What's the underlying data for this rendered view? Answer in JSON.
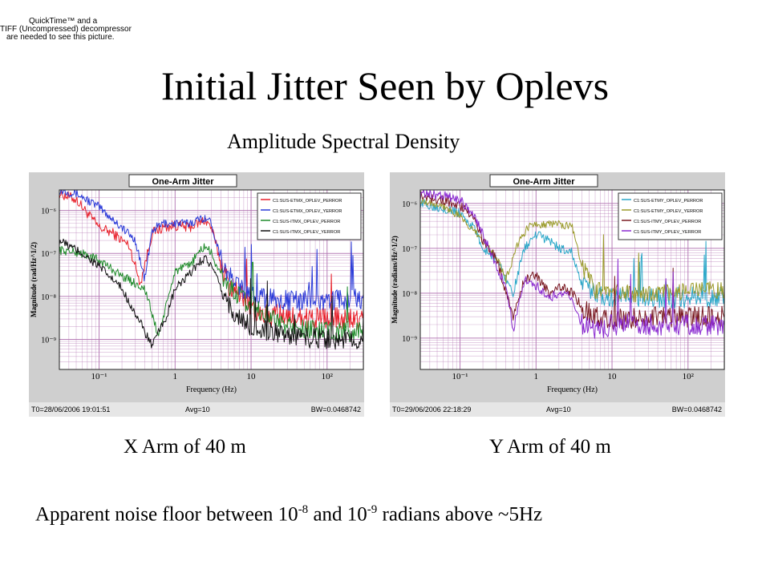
{
  "placeholder_notice": {
    "line1": "QuickTime™ and a",
    "line2": "TIFF (Uncompressed) decompressor",
    "line3": "are needed to see this picture."
  },
  "title": "Initial Jitter Seen by Oplevs",
  "subtitle": "Amplitude Spectral Density",
  "captions": {
    "x_arm": "X Arm of 40 m",
    "y_arm": "Y Arm of 40 m"
  },
  "note": {
    "prefix": "Apparent noise floor between 10",
    "exp1": "-8",
    "mid": " and 10",
    "exp2": "-9",
    "suffix": " radians above ~5Hz"
  },
  "colors": {
    "red": "#e8202a",
    "blue": "#2a3ad8",
    "green": "#1f8a2a",
    "black": "#111111",
    "cyan": "#2aa7c8",
    "olive": "#9a9a2a",
    "maroon": "#7a1a22",
    "purple": "#8a2ad0",
    "grid": "#b070b0",
    "panel_bg": "#cfcfcf"
  },
  "chart_data": [
    {
      "type": "line",
      "title": "One-Arm Jitter",
      "xlabel": "Frequency (Hz)",
      "ylabel": "Magnitude (rad/Hz^1/2)",
      "x_scale": "log",
      "y_scale": "log",
      "xlim": [
        0.03,
        300
      ],
      "ylim": [
        2e-10,
        3e-06
      ],
      "x_ticks": [
        {
          "v": 0.1,
          "label": "10⁻¹"
        },
        {
          "v": 1,
          "label": "1"
        },
        {
          "v": 10,
          "label": "10"
        },
        {
          "v": 100,
          "label": "10²"
        }
      ],
      "y_ticks": [
        {
          "v": 1e-06,
          "label": "10⁻⁶"
        },
        {
          "v": 1e-07,
          "label": "10⁻⁷"
        },
        {
          "v": 1e-08,
          "label": "10⁻⁸"
        },
        {
          "v": 1e-09,
          "label": "10⁻⁹"
        }
      ],
      "grid": true,
      "legend_position": "top-right",
      "footer": {
        "t0": "T0=28/06/2006 19:01:51",
        "avg": "Avg=10",
        "bw": "BW=0.0468742"
      },
      "series": [
        {
          "name": "C1:SUS-ETMX_OPLEV_PERROR",
          "color": "#e8202a",
          "noise": 0.35,
          "points": [
            [
              0.03,
              2.5e-06
            ],
            [
              0.05,
              1.8e-06
            ],
            [
              0.1,
              4e-07
            ],
            [
              0.15,
              3e-07
            ],
            [
              0.25,
              1.5e-07
            ],
            [
              0.35,
              2e-08
            ],
            [
              0.5,
              3e-07
            ],
            [
              0.7,
              4e-07
            ],
            [
              1,
              4.5e-07
            ],
            [
              1.5,
              4e-07
            ],
            [
              2,
              5e-07
            ],
            [
              2.5,
              6e-07
            ],
            [
              3,
              4e-07
            ],
            [
              4,
              6e-08
            ],
            [
              5,
              2e-08
            ],
            [
              8,
              1e-08
            ],
            [
              10,
              5e-09
            ],
            [
              20,
              3.5e-09
            ],
            [
              50,
              3e-09
            ],
            [
              100,
              3e-09
            ],
            [
              300,
              3e-09
            ]
          ]
        },
        {
          "name": "C1:SUS-ETMX_OPLEV_YERROR",
          "color": "#2a3ad8",
          "noise": 0.3,
          "points": [
            [
              0.03,
              3e-06
            ],
            [
              0.05,
              2.5e-06
            ],
            [
              0.1,
              1.2e-06
            ],
            [
              0.2,
              4e-07
            ],
            [
              0.3,
              2e-07
            ],
            [
              0.4,
              2.5e-08
            ],
            [
              0.5,
              3.5e-07
            ],
            [
              0.7,
              5e-07
            ],
            [
              1,
              5e-07
            ],
            [
              1.5,
              5e-07
            ],
            [
              2,
              6e-07
            ],
            [
              2.5,
              7e-07
            ],
            [
              3,
              5e-07
            ],
            [
              4,
              8e-08
            ],
            [
              5,
              3e-08
            ],
            [
              8,
              1.5e-08
            ],
            [
              10,
              1e-08
            ],
            [
              30,
              8e-09
            ],
            [
              100,
              8e-09
            ],
            [
              300,
              9e-09
            ]
          ]
        },
        {
          "name": "C1:SUS-ITMX_OPLEV_PERROR",
          "color": "#1f8a2a",
          "noise": 0.3,
          "points": [
            [
              0.03,
              1.2e-07
            ],
            [
              0.06,
              1e-07
            ],
            [
              0.1,
              7e-08
            ],
            [
              0.2,
              3e-08
            ],
            [
              0.4,
              1.5e-08
            ],
            [
              0.6,
              1.2e-09
            ],
            [
              0.8,
              8e-09
            ],
            [
              1,
              4e-08
            ],
            [
              1.5,
              5e-08
            ],
            [
              2,
              1e-07
            ],
            [
              2.5,
              1.5e-07
            ],
            [
              3,
              1e-07
            ],
            [
              4,
              3e-08
            ],
            [
              6,
              1.2e-08
            ],
            [
              10,
              6e-09
            ],
            [
              30,
              2e-09
            ],
            [
              100,
              1.5e-09
            ],
            [
              300,
              1.5e-09
            ]
          ]
        },
        {
          "name": "C1:SUS-ITMX_OPLEV_YERROR",
          "color": "#111111",
          "noise": 0.3,
          "points": [
            [
              0.03,
              2e-07
            ],
            [
              0.06,
              1e-07
            ],
            [
              0.1,
              5e-08
            ],
            [
              0.2,
              1.5e-08
            ],
            [
              0.3,
              4e-09
            ],
            [
              0.5,
              7e-10
            ],
            [
              0.8,
              4e-09
            ],
            [
              1,
              1.5e-08
            ],
            [
              1.5,
              3e-08
            ],
            [
              2,
              6e-08
            ],
            [
              2.5,
              8e-08
            ],
            [
              3,
              5e-08
            ],
            [
              4,
              1.5e-08
            ],
            [
              6,
              4e-09
            ],
            [
              10,
              2e-09
            ],
            [
              30,
              1.2e-09
            ],
            [
              100,
              1e-09
            ],
            [
              300,
              1e-09
            ]
          ]
        }
      ]
    },
    {
      "type": "line",
      "title": "One-Arm Jitter",
      "xlabel": "Frequency (Hz)",
      "ylabel": "Magnitude (radians/Hz^1/2)",
      "x_scale": "log",
      "y_scale": "log",
      "xlim": [
        0.03,
        300
      ],
      "ylim": [
        2e-10,
        2e-06
      ],
      "x_ticks": [
        {
          "v": 0.1,
          "label": "10⁻¹"
        },
        {
          "v": 1,
          "label": "1"
        },
        {
          "v": 10,
          "label": "10"
        },
        {
          "v": 100,
          "label": "10²"
        }
      ],
      "y_ticks": [
        {
          "v": 1e-06,
          "label": "10⁻⁶"
        },
        {
          "v": 1e-07,
          "label": "10⁻⁷"
        },
        {
          "v": 1e-08,
          "label": "10⁻⁸"
        },
        {
          "v": 1e-09,
          "label": "10⁻⁹"
        }
      ],
      "grid": true,
      "legend_position": "top-right",
      "footer": {
        "t0": "T0=29/06/2006 22:18:29",
        "avg": "Avg=10",
        "bw": "BW=0.0468742"
      },
      "series": [
        {
          "name": "C1:SUS-ETMY_OPLEV_PERROR",
          "color": "#2aa7c8",
          "noise": 0.3,
          "points": [
            [
              0.03,
              1e-06
            ],
            [
              0.06,
              8e-07
            ],
            [
              0.1,
              6e-07
            ],
            [
              0.15,
              3e-07
            ],
            [
              0.2,
              1e-07
            ],
            [
              0.3,
              6e-08
            ],
            [
              0.5,
              1e-08
            ],
            [
              0.7,
              1e-07
            ],
            [
              1,
              2e-07
            ],
            [
              1.5,
              1.5e-07
            ],
            [
              2,
              1e-07
            ],
            [
              3,
              8e-08
            ],
            [
              4,
              1.5e-08
            ],
            [
              6,
              1e-08
            ],
            [
              10,
              8e-09
            ],
            [
              50,
              8e-09
            ],
            [
              300,
              8e-09
            ]
          ]
        },
        {
          "name": "C1:SUS-ETMY_OPLEV_YERROR",
          "color": "#9a9a2a",
          "noise": 0.25,
          "points": [
            [
              0.03,
              1.2e-06
            ],
            [
              0.06,
              9e-07
            ],
            [
              0.1,
              5e-07
            ],
            [
              0.2,
              1.5e-07
            ],
            [
              0.3,
              7e-08
            ],
            [
              0.4,
              2e-08
            ],
            [
              0.6,
              1.5e-07
            ],
            [
              0.8,
              3e-07
            ],
            [
              1,
              3.5e-07
            ],
            [
              1.5,
              3.5e-07
            ],
            [
              2,
              3.5e-07
            ],
            [
              3,
              3e-07
            ],
            [
              4,
              4e-08
            ],
            [
              6,
              1.2e-08
            ],
            [
              10,
              1e-08
            ],
            [
              50,
              1e-08
            ],
            [
              300,
              1.2e-08
            ]
          ]
        },
        {
          "name": "C1:SUS-ITMY_OPLEV_PERROR",
          "color": "#7a1a22",
          "noise": 0.3,
          "points": [
            [
              0.03,
              1.5e-06
            ],
            [
              0.06,
              1.2e-06
            ],
            [
              0.1,
              9e-07
            ],
            [
              0.15,
              5e-07
            ],
            [
              0.2,
              1.5e-07
            ],
            [
              0.3,
              6e-08
            ],
            [
              0.5,
              3e-09
            ],
            [
              0.7,
              2e-08
            ],
            [
              1,
              2.5e-08
            ],
            [
              1.5,
              1e-08
            ],
            [
              2,
              1.5e-08
            ],
            [
              3,
              1e-08
            ],
            [
              4,
              5e-09
            ],
            [
              6,
              3e-09
            ],
            [
              10,
              2.5e-09
            ],
            [
              50,
              3e-09
            ],
            [
              300,
              3e-09
            ]
          ]
        },
        {
          "name": "C1:SUS-ITMY_OPLEV_YERROR",
          "color": "#8a2ad0",
          "noise": 0.3,
          "points": [
            [
              0.03,
              1.6e-06
            ],
            [
              0.06,
              1.5e-06
            ],
            [
              0.1,
              1.2e-06
            ],
            [
              0.15,
              6e-07
            ],
            [
              0.2,
              2e-07
            ],
            [
              0.3,
              4e-08
            ],
            [
              0.4,
              1.5e-08
            ],
            [
              0.5,
              1.5e-09
            ],
            [
              0.7,
              2e-08
            ],
            [
              1,
              1.5e-08
            ],
            [
              1.5,
              8e-09
            ],
            [
              2,
              1e-08
            ],
            [
              3,
              8e-09
            ],
            [
              4,
              2e-09
            ],
            [
              6,
              1.5e-09
            ],
            [
              10,
              2e-09
            ],
            [
              50,
              2e-09
            ],
            [
              300,
              2e-09
            ]
          ]
        }
      ]
    }
  ]
}
